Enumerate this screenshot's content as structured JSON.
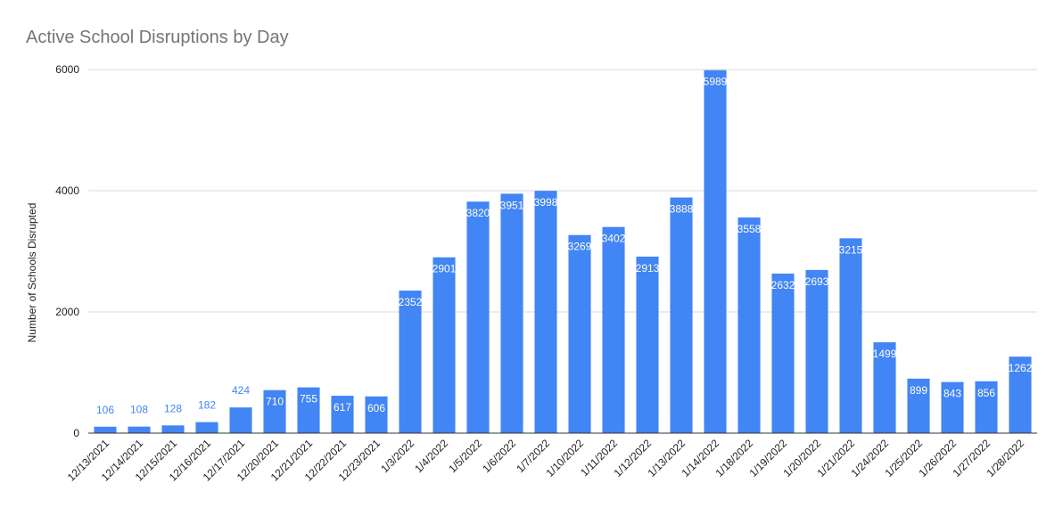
{
  "chart_data": {
    "type": "bar",
    "title": "Active School Disruptions by Day",
    "xlabel": "",
    "ylabel": "Number of Schools Disrupted",
    "ylim": [
      0,
      6000
    ],
    "yticks": [
      0,
      2000,
      4000,
      6000
    ],
    "grid": true,
    "bar_color": "#4285f4",
    "label_color_outside": "#4285f4",
    "label_color_inside": "#ffffff",
    "categories": [
      "12/13/2021",
      "12/14/2021",
      "12/15/2021",
      "12/16/2021",
      "12/17/2021",
      "12/20/2021",
      "12/21/2021",
      "12/22/2021",
      "12/23/2021",
      "1/3/2022",
      "1/4/2022",
      "1/5/2022",
      "1/6/2022",
      "1/7/2022",
      "1/10/2022",
      "1/11/2022",
      "1/12/2022",
      "1/13/2022",
      "1/14/2022",
      "1/18/2022",
      "1/19/2022",
      "1/20/2022",
      "1/21/2022",
      "1/24/2022",
      "1/25/2022",
      "1/26/2022",
      "1/27/2022",
      "1/28/2022"
    ],
    "values": [
      106,
      108,
      128,
      182,
      424,
      710,
      755,
      617,
      606,
      2352,
      2901,
      3820,
      3951,
      3998,
      3269,
      3402,
      2913,
      3888,
      5989,
      3558,
      2632,
      2693,
      3215,
      1499,
      899,
      843,
      856,
      1262
    ],
    "data_labels": [
      "106",
      "108",
      "128",
      "182",
      "424",
      "710",
      "755",
      "617",
      "606",
      "2352",
      "2901",
      "3820",
      "3951",
      "3998",
      "3269",
      "3402",
      "2913",
      "3888",
      "5989",
      "3558",
      "2632",
      "2693",
      "3215",
      "1499",
      "899",
      "843",
      "856",
      "1262"
    ]
  }
}
